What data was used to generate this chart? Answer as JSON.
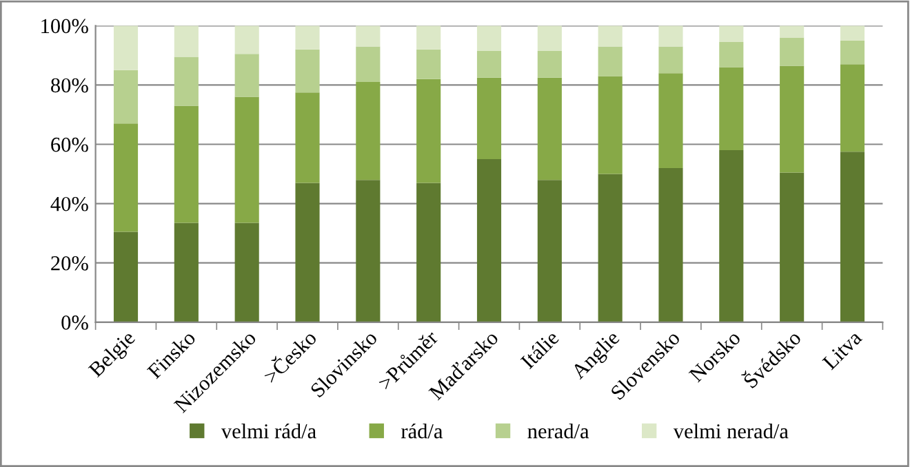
{
  "chart_data": {
    "type": "bar",
    "stacked": true,
    "categories": [
      "Belgie",
      "Finsko",
      "Nizozemsko",
      ">Česko",
      "Slovinsko",
      ">Průměr",
      "Maďarsko",
      "Itálie",
      "Anglie",
      "Slovensko",
      "Norsko",
      "Švédsko",
      "Litva"
    ],
    "series": [
      {
        "name": "velmi rád/a",
        "color": "#5f7a30",
        "values": [
          30.5,
          33.5,
          33.5,
          47,
          48,
          47,
          55,
          48,
          50,
          52,
          58,
          50.5,
          57.5
        ]
      },
      {
        "name": "rád/a",
        "color": "#87a947",
        "values": [
          36.5,
          39.5,
          42.5,
          30.5,
          33,
          35,
          27.5,
          34.5,
          33,
          32,
          28,
          36,
          29.5
        ]
      },
      {
        "name": "nerad/a",
        "color": "#b7d08f",
        "values": [
          18,
          16.5,
          14.5,
          14.5,
          12,
          10,
          9,
          9,
          10,
          9,
          8.5,
          9.5,
          8
        ]
      },
      {
        "name": "velmi nerad/a",
        "color": "#dce8c7",
        "values": [
          15,
          10.5,
          9.5,
          8,
          7,
          8,
          8.5,
          8.5,
          7,
          7,
          5.5,
          4,
          5
        ]
      }
    ],
    "ylim": [
      0,
      100
    ],
    "yticks": [
      {
        "value": 0,
        "label": "0%"
      },
      {
        "value": 20,
        "label": "20%"
      },
      {
        "value": 40,
        "label": "40%"
      },
      {
        "value": 60,
        "label": "60%"
      },
      {
        "value": 80,
        "label": "80%"
      },
      {
        "value": 100,
        "label": "100%"
      }
    ],
    "grid": "y",
    "legend": "bottom"
  }
}
